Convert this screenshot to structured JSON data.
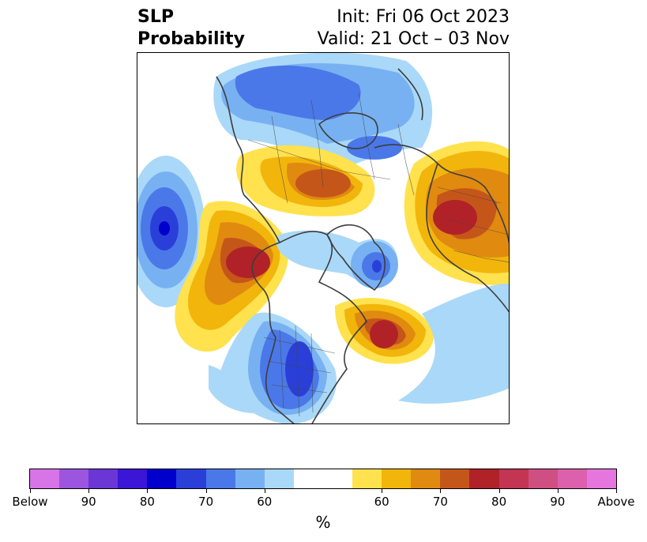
{
  "header": {
    "title_line1": "SLP",
    "title_line2": "Probability",
    "init_text": "Init: Fri 06 Oct 2023",
    "valid_text": "Valid: 21 Oct – 03 Nov"
  },
  "map": {
    "projection": "north-polar-stereographic",
    "features": [
      "coastlines",
      "country-borders",
      "us-state-borders"
    ]
  },
  "colorbar": {
    "unit_label": "%",
    "tick_labels": [
      "Below",
      "90",
      "80",
      "70",
      "60",
      "60",
      "70",
      "80",
      "90",
      "Above"
    ],
    "colors": [
      "#d873e8",
      "#9b55de",
      "#6a36d6",
      "#3b16d6",
      "#0000cd",
      "#2a3fd8",
      "#4b78e8",
      "#78b1f2",
      "#aad8f8",
      "#ffffff",
      "#ffe24e",
      "#f2b50c",
      "#e08a10",
      "#c5561a",
      "#b02228",
      "#c43553",
      "#cf4f82",
      "#dc60ac",
      "#e576dd"
    ],
    "white_band_widths": 2
  }
}
